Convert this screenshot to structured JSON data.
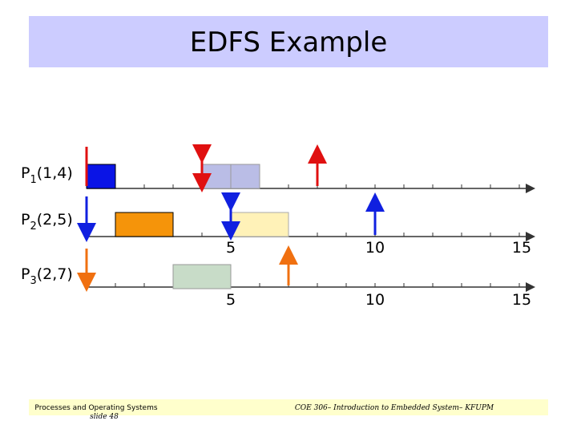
{
  "title": "EDFS Example",
  "processes": [
    {
      "name": "P",
      "index": "1",
      "params": "(1,4)"
    },
    {
      "name": "P",
      "index": "2",
      "params": "(2,5)"
    },
    {
      "name": "P",
      "index": "3",
      "params": "(2,7)"
    }
  ],
  "axis_labels": [
    "5",
    "10",
    "15"
  ],
  "footer": {
    "left": [
      "Processes and Operating Systems",
      "slide 48"
    ],
    "center": "COE 306– Introduction to Embedded System– KFUPM"
  }
}
